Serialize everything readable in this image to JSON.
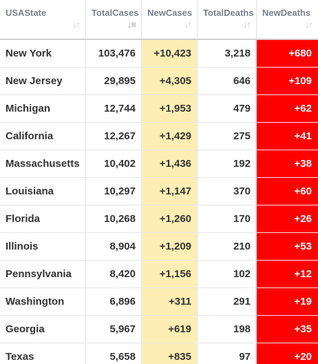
{
  "columns": [
    {
      "line1": "USA",
      "line2": "State",
      "sort_icon": "sort-arrows-icon"
    },
    {
      "line1": "Total",
      "line2": "Cases",
      "sort_icon": "sort-desc-icon"
    },
    {
      "line1": "New",
      "line2": "Cases",
      "sort_icon": "sort-arrows-icon"
    },
    {
      "line1": "Total",
      "line2": "Deaths",
      "sort_icon": "sort-arrows-icon"
    },
    {
      "line1": "New",
      "line2": "Deaths",
      "sort_icon": "sort-arrows-icon"
    }
  ],
  "rows": [
    {
      "state": "New York",
      "total_cases": "103,476",
      "new_cases": "+10,423",
      "total_deaths": "3,218",
      "new_deaths": "+680"
    },
    {
      "state": "New Jersey",
      "total_cases": "29,895",
      "new_cases": "+4,305",
      "total_deaths": "646",
      "new_deaths": "+109"
    },
    {
      "state": "Michigan",
      "total_cases": "12,744",
      "new_cases": "+1,953",
      "total_deaths": "479",
      "new_deaths": "+62"
    },
    {
      "state": "California",
      "total_cases": "12,267",
      "new_cases": "+1,429",
      "total_deaths": "275",
      "new_deaths": "+41"
    },
    {
      "state": "Massachusetts",
      "total_cases": "10,402",
      "new_cases": "+1,436",
      "total_deaths": "192",
      "new_deaths": "+38"
    },
    {
      "state": "Louisiana",
      "total_cases": "10,297",
      "new_cases": "+1,147",
      "total_deaths": "370",
      "new_deaths": "+60"
    },
    {
      "state": "Florida",
      "total_cases": "10,268",
      "new_cases": "+1,260",
      "total_deaths": "170",
      "new_deaths": "+26"
    },
    {
      "state": "Illinois",
      "total_cases": "8,904",
      "new_cases": "+1,209",
      "total_deaths": "210",
      "new_deaths": "+53"
    },
    {
      "state": "Pennsylvania",
      "total_cases": "8,420",
      "new_cases": "+1,156",
      "total_deaths": "102",
      "new_deaths": "+12"
    },
    {
      "state": "Washington",
      "total_cases": "6,896",
      "new_cases": "+311",
      "total_deaths": "291",
      "new_deaths": "+19"
    },
    {
      "state": "Georgia",
      "total_cases": "5,967",
      "new_cases": "+619",
      "total_deaths": "198",
      "new_deaths": "+35"
    },
    {
      "state": "Texas",
      "total_cases": "5,658",
      "new_cases": "+835",
      "total_deaths": "97",
      "new_deaths": "+20"
    }
  ],
  "colors": {
    "new_cases_bg": "#feeeb4",
    "new_deaths_bg": "#ff0000",
    "header_text": "#7a8089"
  }
}
